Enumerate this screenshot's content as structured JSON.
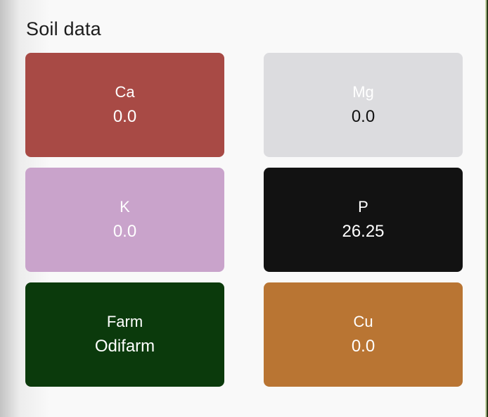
{
  "section": {
    "title": "Soil data"
  },
  "cards": [
    {
      "label": "Ca",
      "value": "0.0",
      "bg": "#a84a45",
      "label_color": "#ffffff",
      "value_color": "#ffffff"
    },
    {
      "label": "Mg",
      "value": "0.0",
      "bg": "#dcdcdf",
      "label_color": "#ffffff",
      "value_color": "#111111"
    },
    {
      "label": "K",
      "value": "0.0",
      "bg": "#c9a3cb",
      "label_color": "#ffffff",
      "value_color": "#ffffff"
    },
    {
      "label": "P",
      "value": "26.25",
      "bg": "#121212",
      "label_color": "#ffffff",
      "value_color": "#ffffff"
    },
    {
      "label": "Farm",
      "value": "Odifarm",
      "bg": "#0b3a0c",
      "label_color": "#ffffff",
      "value_color": "#ffffff"
    },
    {
      "label": "Cu",
      "value": "0.0",
      "bg": "#b97533",
      "label_color": "#ffffff",
      "value_color": "#ffffff"
    }
  ]
}
